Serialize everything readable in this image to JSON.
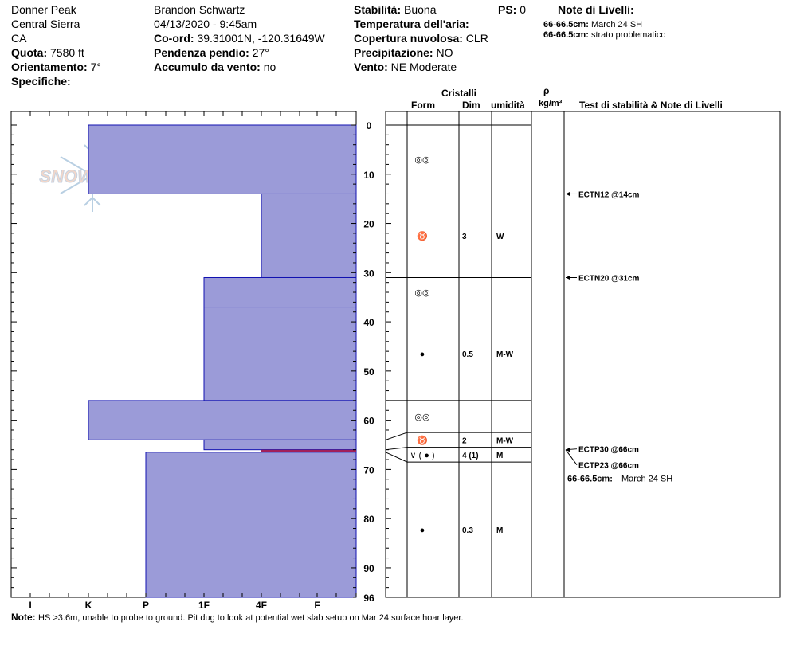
{
  "header": {
    "location": [
      "Donner Peak",
      "Central Sierra",
      "CA"
    ],
    "elevation_label": "Quota:",
    "elevation_value": "7580 ft",
    "aspect_label": "Orientamento:",
    "aspect_value": "7°",
    "specifics_label": "Specifiche:",
    "observer": "Brandon Schwartz",
    "datetime": "04/13/2020 - 9:45am",
    "coord_label": "Co-ord:",
    "coord_value": "39.31001N, -120.31649W",
    "slope_label": "Pendenza pendio:",
    "slope_value": "27°",
    "wind_load_label": "Accumulo da vento:",
    "wind_load_value": "no",
    "stability_label": "Stabilità:",
    "stability_value": "Buona",
    "ps_label": "PS:",
    "ps_value": "0",
    "air_temp_label": "Temperatura dell'aria:",
    "cloud_label": "Copertura nuvolosa:",
    "cloud_value": "CLR",
    "precip_label": "Precipitazione:",
    "precip_value": "NO",
    "wind_label": "Vento:",
    "wind_value": "NE Moderate",
    "layer_notes_title": "Note di Livelli:",
    "layer_notes": [
      {
        "range": "66-66.5cm:",
        "text": "March 24 SH"
      },
      {
        "range": "66-66.5cm:",
        "text": "strato problematico"
      }
    ]
  },
  "columns": {
    "crystals": "Cristalli",
    "form": "Form",
    "dim": "Dim",
    "moisture": "umidità",
    "rho": "ρ",
    "density_unit": "kg/m³",
    "stability": "Test di stabilità & Note di Livelli"
  },
  "logo_text": "SNOWPILOT",
  "footer": {
    "label": "Note:",
    "text": "HS >3.6m, unable to probe to ground. Pit dug to look at potential wet slab setup on Mar 24 surface hoar layer."
  },
  "chart_data": {
    "type": "bar",
    "depth_range": [
      0,
      96
    ],
    "depth_ticks": [
      0,
      10,
      20,
      30,
      40,
      50,
      60,
      70,
      80,
      90,
      96
    ],
    "hardness_ticks": [
      "I",
      "K",
      "P",
      "1F",
      "4F",
      "F"
    ],
    "hardness_layers": [
      {
        "top": 0,
        "bottom": 14,
        "hardness": "K"
      },
      {
        "top": 14,
        "bottom": 31,
        "hardness": "4F"
      },
      {
        "top": 31,
        "bottom": 37,
        "hardness": "1F"
      },
      {
        "top": 37,
        "bottom": 56,
        "hardness": "1F"
      },
      {
        "top": 56,
        "bottom": 64,
        "hardness": "K"
      },
      {
        "top": 64,
        "bottom": 66,
        "hardness": "1F"
      },
      {
        "top": 66,
        "bottom": 66.5,
        "hardness": "4F"
      },
      {
        "top": 66.5,
        "bottom": 96,
        "hardness": "P"
      }
    ],
    "problem_layer": {
      "top": 66,
      "bottom": 66.5,
      "color": "#a0205a"
    },
    "layer_color": "#9b9bd8",
    "layer_edge": "#1010b0",
    "crystal_layers": [
      {
        "top": 0,
        "bottom": 14,
        "form": "◎◎",
        "dim": "",
        "moisture": ""
      },
      {
        "top": 14,
        "bottom": 31,
        "form": "♉",
        "dim": "3",
        "moisture": "W"
      },
      {
        "top": 31,
        "bottom": 37,
        "form": "◎◎",
        "dim": "",
        "moisture": ""
      },
      {
        "top": 37,
        "bottom": 56,
        "form": "●",
        "dim": "0.5",
        "moisture": "M-W"
      },
      {
        "top": 56,
        "bottom": 62.5,
        "form": "◎◎",
        "dim": "",
        "moisture": ""
      },
      {
        "top": 62.5,
        "bottom": 65.5,
        "form": "♉",
        "dim": "2",
        "moisture": "M-W"
      },
      {
        "top": 65.5,
        "bottom": 68.5,
        "form": "∨ ( ● )",
        "dim": "4 (1)",
        "moisture": "M"
      },
      {
        "top": 68.5,
        "bottom": 96,
        "form": "●",
        "dim": "0.3",
        "moisture": "M"
      }
    ],
    "stability_tests": [
      {
        "depth": 14,
        "label": "ECTN12 @14cm"
      },
      {
        "depth": 31,
        "label": "ECTN20 @31cm"
      },
      {
        "depth": 66,
        "label": "ECTP30 @66cm"
      },
      {
        "depth": 66,
        "label": "ECTP23 @66cm"
      }
    ],
    "depth_note": {
      "range": "66-66.5cm:",
      "text": "March 24 SH"
    }
  }
}
